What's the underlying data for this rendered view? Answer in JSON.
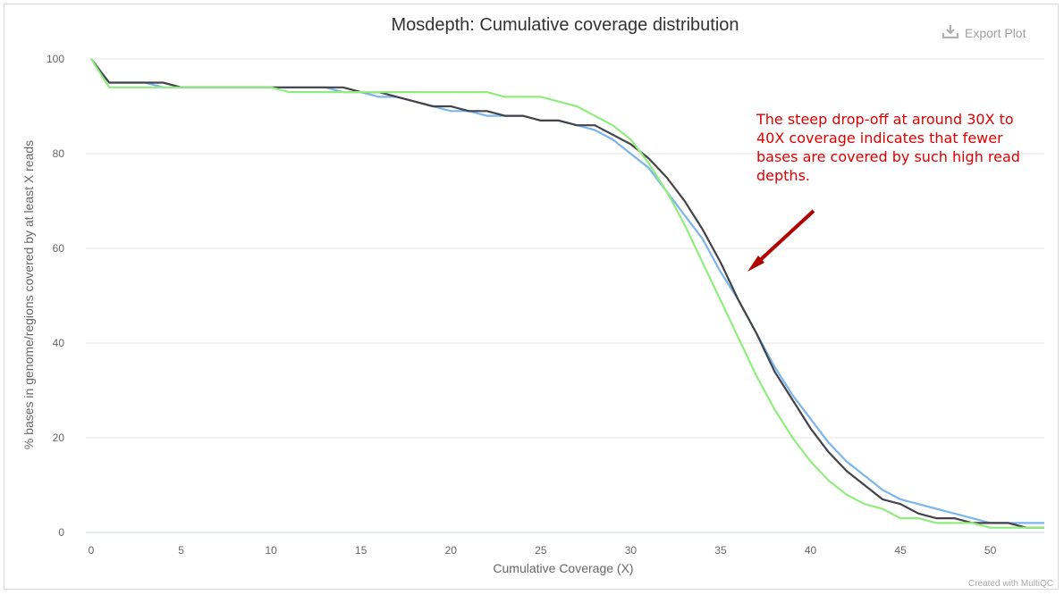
{
  "export_label": "Export Plot",
  "credit": "Created with MultiQC",
  "annotation": "The steep drop-off at around 30X to 40X coverage indicates that fewer bases are covered by such high read depths.",
  "colors": {
    "series": [
      "#7cb5ec",
      "#434348",
      "#90ed7d"
    ],
    "annotation": "#e00000",
    "arrow": "#b00000",
    "grid": "#e6e6e6"
  },
  "chart_data": {
    "type": "line",
    "title": "Mosdepth: Cumulative coverage distribution",
    "xlabel": "Cumulative Coverage (X)",
    "ylabel": "% bases in genome/regions covered by at least X reads",
    "xlim": [
      0,
      53
    ],
    "ylim": [
      0,
      100
    ],
    "xticks": [
      0,
      5,
      10,
      15,
      20,
      25,
      30,
      35,
      40,
      45,
      50
    ],
    "yticks": [
      0,
      20,
      40,
      60,
      80,
      100
    ],
    "grid": true,
    "series": [
      {
        "color": "#7cb5ec",
        "values": [
          [
            0,
            100
          ],
          [
            1,
            95
          ],
          [
            2,
            95
          ],
          [
            3,
            95
          ],
          [
            4,
            94
          ],
          [
            5,
            94
          ],
          [
            6,
            94
          ],
          [
            7,
            94
          ],
          [
            8,
            94
          ],
          [
            9,
            94
          ],
          [
            10,
            94
          ],
          [
            11,
            94
          ],
          [
            12,
            94
          ],
          [
            13,
            94
          ],
          [
            14,
            93
          ],
          [
            15,
            93
          ],
          [
            16,
            92
          ],
          [
            17,
            92
          ],
          [
            18,
            91
          ],
          [
            19,
            90
          ],
          [
            20,
            89
          ],
          [
            21,
            89
          ],
          [
            22,
            88
          ],
          [
            23,
            88
          ],
          [
            24,
            88
          ],
          [
            25,
            87
          ],
          [
            26,
            87
          ],
          [
            27,
            86
          ],
          [
            28,
            85
          ],
          [
            29,
            83
          ],
          [
            30,
            80
          ],
          [
            31,
            77
          ],
          [
            32,
            72
          ],
          [
            33,
            67
          ],
          [
            34,
            62
          ],
          [
            35,
            55
          ],
          [
            36,
            49
          ],
          [
            37,
            42
          ],
          [
            38,
            35
          ],
          [
            39,
            29
          ],
          [
            40,
            24
          ],
          [
            41,
            19
          ],
          [
            42,
            15
          ],
          [
            43,
            12
          ],
          [
            44,
            9
          ],
          [
            45,
            7
          ],
          [
            46,
            6
          ],
          [
            47,
            5
          ],
          [
            48,
            4
          ],
          [
            49,
            3
          ],
          [
            50,
            2
          ],
          [
            51,
            2
          ],
          [
            52,
            2
          ],
          [
            53,
            2
          ]
        ]
      },
      {
        "color": "#434348",
        "values": [
          [
            0,
            100
          ],
          [
            1,
            95
          ],
          [
            2,
            95
          ],
          [
            3,
            95
          ],
          [
            4,
            95
          ],
          [
            5,
            94
          ],
          [
            6,
            94
          ],
          [
            7,
            94
          ],
          [
            8,
            94
          ],
          [
            9,
            94
          ],
          [
            10,
            94
          ],
          [
            11,
            94
          ],
          [
            12,
            94
          ],
          [
            13,
            94
          ],
          [
            14,
            94
          ],
          [
            15,
            93
          ],
          [
            16,
            93
          ],
          [
            17,
            92
          ],
          [
            18,
            91
          ],
          [
            19,
            90
          ],
          [
            20,
            90
          ],
          [
            21,
            89
          ],
          [
            22,
            89
          ],
          [
            23,
            88
          ],
          [
            24,
            88
          ],
          [
            25,
            87
          ],
          [
            26,
            87
          ],
          [
            27,
            86
          ],
          [
            28,
            86
          ],
          [
            29,
            84
          ],
          [
            30,
            82
          ],
          [
            31,
            79
          ],
          [
            32,
            75
          ],
          [
            33,
            70
          ],
          [
            34,
            64
          ],
          [
            35,
            57
          ],
          [
            36,
            49
          ],
          [
            37,
            42
          ],
          [
            38,
            34
          ],
          [
            39,
            28
          ],
          [
            40,
            22
          ],
          [
            41,
            17
          ],
          [
            42,
            13
          ],
          [
            43,
            10
          ],
          [
            44,
            7
          ],
          [
            45,
            6
          ],
          [
            46,
            4
          ],
          [
            47,
            3
          ],
          [
            48,
            3
          ],
          [
            49,
            2
          ],
          [
            50,
            2
          ],
          [
            51,
            2
          ],
          [
            52,
            1
          ],
          [
            53,
            1
          ]
        ]
      },
      {
        "color": "#90ed7d",
        "values": [
          [
            0,
            100
          ],
          [
            1,
            94
          ],
          [
            2,
            94
          ],
          [
            3,
            94
          ],
          [
            4,
            94
          ],
          [
            5,
            94
          ],
          [
            6,
            94
          ],
          [
            7,
            94
          ],
          [
            8,
            94
          ],
          [
            9,
            94
          ],
          [
            10,
            94
          ],
          [
            11,
            93
          ],
          [
            12,
            93
          ],
          [
            13,
            93
          ],
          [
            14,
            93
          ],
          [
            15,
            93
          ],
          [
            16,
            93
          ],
          [
            17,
            93
          ],
          [
            18,
            93
          ],
          [
            19,
            93
          ],
          [
            20,
            93
          ],
          [
            21,
            93
          ],
          [
            22,
            93
          ],
          [
            23,
            92
          ],
          [
            24,
            92
          ],
          [
            25,
            92
          ],
          [
            26,
            91
          ],
          [
            27,
            90
          ],
          [
            28,
            88
          ],
          [
            29,
            86
          ],
          [
            30,
            83
          ],
          [
            31,
            78
          ],
          [
            32,
            72
          ],
          [
            33,
            65
          ],
          [
            34,
            57
          ],
          [
            35,
            49
          ],
          [
            36,
            41
          ],
          [
            37,
            33
          ],
          [
            38,
            26
          ],
          [
            39,
            20
          ],
          [
            40,
            15
          ],
          [
            41,
            11
          ],
          [
            42,
            8
          ],
          [
            43,
            6
          ],
          [
            44,
            5
          ],
          [
            45,
            3
          ],
          [
            46,
            3
          ],
          [
            47,
            2
          ],
          [
            48,
            2
          ],
          [
            49,
            2
          ],
          [
            50,
            1
          ],
          [
            51,
            1
          ],
          [
            52,
            1
          ],
          [
            53,
            1
          ]
        ]
      }
    ]
  }
}
